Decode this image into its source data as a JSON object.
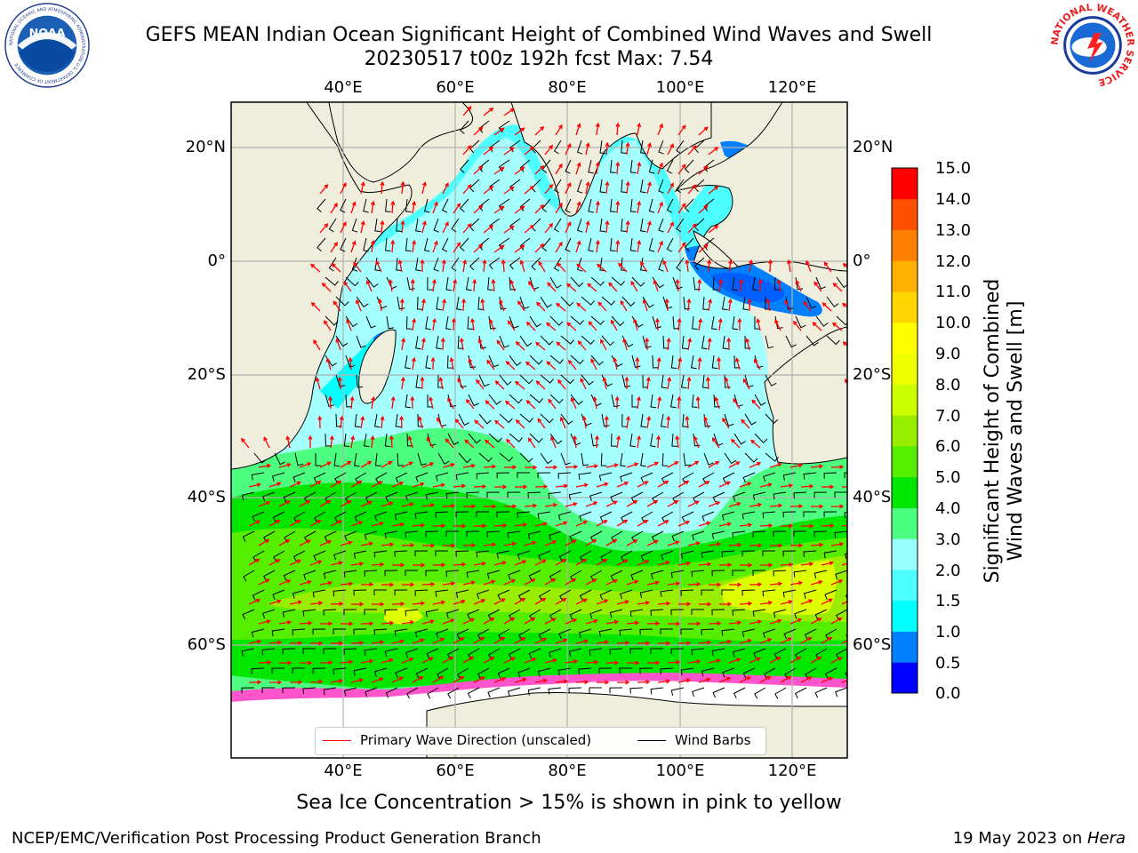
{
  "header": {
    "title_line1": "GEFS MEAN Indian Ocean Significant Height of Combined Wind Waves and Swell",
    "title_line2": "20230517 t00z 192h fcst   Max: 7.54"
  },
  "logos": {
    "left": {
      "name": "noaa-logo",
      "text": "NOAA",
      "ring_text": "NATIONAL OCEANIC AND ATMOSPHERIC ADMINISTRATION  U.S. DEPARTMENT OF COMMERCE"
    },
    "right": {
      "name": "nws-logo",
      "ring_text": "NATIONAL WEATHER SERVICE"
    }
  },
  "map": {
    "lon_labels": [
      "40°E",
      "60°E",
      "80°E",
      "100°E",
      "120°E"
    ],
    "lat_labels": [
      "20°N",
      "0°",
      "20°S",
      "40°S",
      "60°S"
    ],
    "colors": {
      "land": "#efeedd",
      "ice": "#ffffff",
      "grid": "#b0b0b0",
      "wave_arrow": "#ff0000",
      "wind_barb": "#000000"
    }
  },
  "legend": {
    "items": [
      {
        "label": "Primary Wave Direction (unscaled)",
        "color": "#ff0000"
      },
      {
        "label": "Wind Barbs",
        "color": "#000000"
      }
    ]
  },
  "colorbar": {
    "label_line1": "Significant Height of Combined",
    "label_line2": "Wind Waves and Swell [m]",
    "ticks": [
      "15.0",
      "14.0",
      "13.0",
      "12.0",
      "11.0",
      "10.0",
      "9.0",
      "8.0",
      "7.0",
      "6.0",
      "5.0",
      "4.0",
      "3.0",
      "2.0",
      "1.5",
      "1.0",
      "0.5",
      "0.0"
    ],
    "colors": [
      "#0000ff",
      "#0080ff",
      "#00ffff",
      "#4dffff",
      "#99ffff",
      "#4dff80",
      "#00e600",
      "#55ee00",
      "#99ee00",
      "#ccff00",
      "#eeff00",
      "#ffff00",
      "#ffd700",
      "#ffb000",
      "#ff8000",
      "#ff5000",
      "#ff0000"
    ]
  },
  "note": "Sea Ice Concentration > 15% is shown in pink to yellow",
  "footer": {
    "left": "NCEP/EMC/Verification Post Processing Product Generation Branch",
    "right_date": "19 May 2023 on ",
    "right_host": "Hera"
  }
}
